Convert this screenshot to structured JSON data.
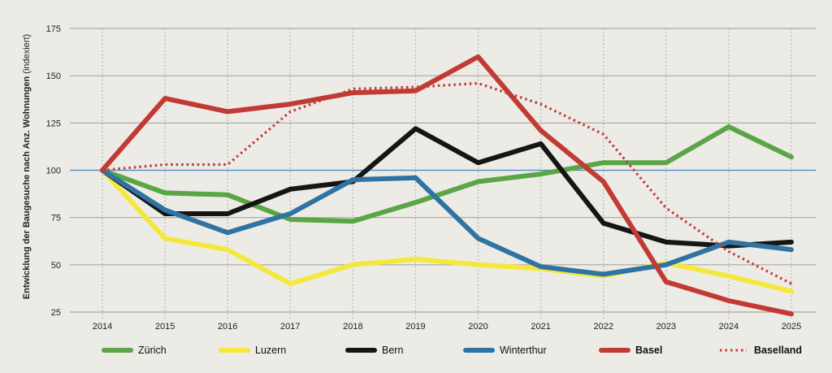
{
  "chart_data": {
    "type": "line",
    "title": "",
    "xlabel": "",
    "ylabel": "Entwicklung der Baugesuche nach Anz. Wohnungen",
    "ylabel_suffix": "(indexiert)",
    "x": [
      2014,
      2015,
      2016,
      2017,
      2018,
      2019,
      2020,
      2021,
      2022,
      2023,
      2024,
      2025
    ],
    "ylim": [
      25,
      175
    ],
    "yticks": [
      25,
      50,
      75,
      100,
      125,
      150,
      175
    ],
    "reference_line": 100,
    "grid": "horizontal solid, vertical dotted",
    "legend_position": "bottom",
    "series": [
      {
        "name": "Zürich",
        "color": "#5aa545",
        "style": "solid",
        "bold": false,
        "values": [
          100,
          88,
          87,
          74,
          73,
          83,
          94,
          98,
          104,
          104,
          123,
          107
        ]
      },
      {
        "name": "Luzern",
        "color": "#f4e93a",
        "style": "solid",
        "bold": false,
        "values": [
          100,
          64,
          58,
          40,
          50,
          53,
          50,
          48,
          44,
          51,
          44,
          36
        ]
      },
      {
        "name": "Bern",
        "color": "#151515",
        "style": "solid",
        "bold": false,
        "values": [
          100,
          77,
          77,
          90,
          94,
          122,
          104,
          114,
          72,
          62,
          60,
          62
        ]
      },
      {
        "name": "Winterthur",
        "color": "#2f73a3",
        "style": "solid",
        "bold": false,
        "values": [
          100,
          79,
          67,
          77,
          95,
          96,
          64,
          49,
          45,
          50,
          62,
          58
        ]
      },
      {
        "name": "Basel",
        "color": "#c23a34",
        "style": "solid",
        "bold": true,
        "values": [
          100,
          138,
          131,
          135,
          141,
          142,
          160,
          121,
          94,
          41,
          31,
          24
        ]
      },
      {
        "name": "Baselland",
        "color": "#c23a34",
        "style": "dotted",
        "bold": true,
        "values": [
          100,
          103,
          103,
          131,
          143,
          144,
          146,
          135,
          119,
          80,
          57,
          40
        ]
      }
    ]
  }
}
